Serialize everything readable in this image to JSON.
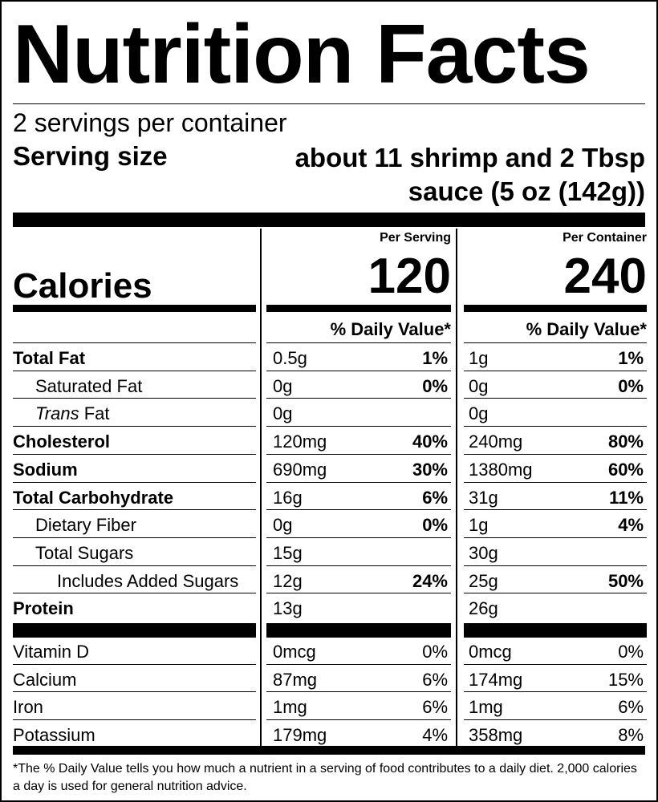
{
  "title": "Nutrition Facts",
  "servings_per_container": "2 servings per container",
  "serving_size_label": "Serving size",
  "serving_size_value": "about 11 shrimp and 2 Tbsp sauce (5 oz (142g))",
  "columns": {
    "per_serving": "Per Serving",
    "per_container": "Per Container"
  },
  "calories": {
    "label": "Calories",
    "per_serving": "120",
    "per_container": "240"
  },
  "daily_value_header": "% Daily Value*",
  "nutrients": [
    {
      "name": "Total Fat",
      "style": "bold",
      "ps_amount": "0.5g",
      "ps_dv": "1%",
      "pc_amount": "1g",
      "pc_dv": "1%"
    },
    {
      "name": "Saturated Fat",
      "style": "indent1",
      "ps_amount": "0g",
      "ps_dv": "0%",
      "pc_amount": "0g",
      "pc_dv": "0%"
    },
    {
      "name": "Fat",
      "name_prefix_italic": "Trans",
      "style": "indent1",
      "ps_amount": "0g",
      "ps_dv": "",
      "pc_amount": "0g",
      "pc_dv": ""
    },
    {
      "name": "Cholesterol",
      "style": "bold",
      "ps_amount": "120mg",
      "ps_dv": "40%",
      "pc_amount": "240mg",
      "pc_dv": "80%"
    },
    {
      "name": "Sodium",
      "style": "bold",
      "ps_amount": "690mg",
      "ps_dv": "30%",
      "pc_amount": "1380mg",
      "pc_dv": "60%"
    },
    {
      "name": "Total Carbohydrate",
      "style": "bold",
      "ps_amount": "16g",
      "ps_dv": "6%",
      "pc_amount": "31g",
      "pc_dv": "11%"
    },
    {
      "name": "Dietary Fiber",
      "style": "indent1",
      "ps_amount": "0g",
      "ps_dv": "0%",
      "pc_amount": "1g",
      "pc_dv": "4%"
    },
    {
      "name": "Total Sugars",
      "style": "indent1",
      "ps_amount": "15g",
      "ps_dv": "",
      "pc_amount": "30g",
      "pc_dv": ""
    },
    {
      "name": "Includes Added Sugars",
      "style": "indent2",
      "ps_amount": "12g",
      "ps_dv": "24%",
      "pc_amount": "25g",
      "pc_dv": "50%"
    },
    {
      "name": "Protein",
      "style": "bold",
      "ps_amount": "13g",
      "ps_dv": "",
      "pc_amount": "26g",
      "pc_dv": ""
    }
  ],
  "vitamins": [
    {
      "name": "Vitamin D",
      "ps_amount": "0mcg",
      "ps_dv": "0%",
      "pc_amount": "0mcg",
      "pc_dv": "0%"
    },
    {
      "name": "Calcium",
      "ps_amount": "87mg",
      "ps_dv": "6%",
      "pc_amount": "174mg",
      "pc_dv": "15%"
    },
    {
      "name": "Iron",
      "ps_amount": "1mg",
      "ps_dv": "6%",
      "pc_amount": "1mg",
      "pc_dv": "6%"
    },
    {
      "name": "Potassium",
      "ps_amount": "179mg",
      "ps_dv": "4%",
      "pc_amount": "358mg",
      "pc_dv": "8%"
    }
  ],
  "footnote": "*The % Daily Value tells you how much a nutrient in a serving of food contributes to a daily diet. 2,000 calories a day is used for general nutrition advice."
}
